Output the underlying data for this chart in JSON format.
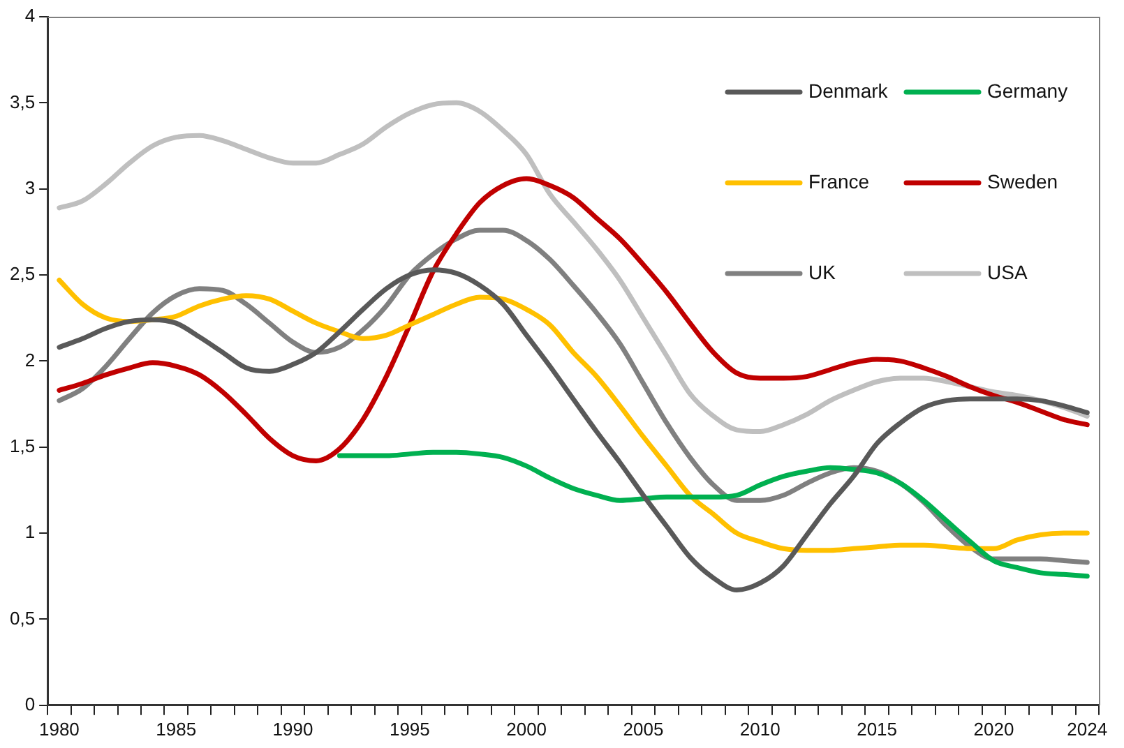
{
  "chart_data": {
    "type": "line",
    "categories": [
      "1980",
      null,
      null,
      null,
      null,
      "1985",
      null,
      null,
      null,
      null,
      "1990",
      null,
      null,
      null,
      null,
      "1995",
      null,
      null,
      null,
      null,
      "2000",
      null,
      null,
      null,
      null,
      "2005",
      null,
      null,
      null,
      null,
      "2010",
      null,
      null,
      null,
      null,
      "2015",
      null,
      null,
      null,
      null,
      "2020",
      null,
      null,
      null,
      "2024"
    ],
    "series": [
      {
        "name": "Denmark",
        "color": "#595959",
        "values": [
          2.08,
          2.13,
          2.19,
          2.23,
          2.24,
          2.22,
          2.14,
          2.05,
          1.96,
          1.94,
          1.98,
          2.05,
          2.17,
          2.3,
          2.42,
          2.5,
          2.53,
          2.51,
          2.44,
          2.33,
          2.15,
          1.97,
          1.78,
          1.59,
          1.41,
          1.22,
          1.04,
          0.86,
          0.74,
          0.67,
          0.71,
          0.81,
          0.99,
          1.17,
          1.33,
          1.52,
          1.64,
          1.73,
          1.77,
          1.78,
          1.78,
          1.78,
          1.77,
          1.74,
          1.7
        ]
      },
      {
        "name": "Germany",
        "color": "#00b050",
        "values": [
          null,
          null,
          null,
          null,
          null,
          null,
          null,
          null,
          null,
          null,
          null,
          null,
          1.45,
          1.45,
          1.45,
          1.46,
          1.47,
          1.47,
          1.46,
          1.44,
          1.39,
          1.32,
          1.26,
          1.22,
          1.19,
          1.2,
          1.21,
          1.21,
          1.21,
          1.22,
          1.28,
          1.33,
          1.36,
          1.38,
          1.37,
          1.35,
          1.29,
          1.19,
          1.07,
          0.95,
          0.84,
          0.8,
          0.77,
          0.76,
          0.75
        ]
      },
      {
        "name": "France",
        "color": "#ffc000",
        "values": [
          2.47,
          2.33,
          2.25,
          2.23,
          2.24,
          2.26,
          2.32,
          2.36,
          2.38,
          2.36,
          2.29,
          2.22,
          2.17,
          2.13,
          2.15,
          2.21,
          2.27,
          2.33,
          2.37,
          2.36,
          2.3,
          2.21,
          2.05,
          1.91,
          1.74,
          1.56,
          1.39,
          1.22,
          1.11,
          1.0,
          0.95,
          0.91,
          0.9,
          0.9,
          0.91,
          0.92,
          0.93,
          0.93,
          0.92,
          0.91,
          0.91,
          0.96,
          0.99,
          1.0,
          1.0
        ]
      },
      {
        "name": "Sweden",
        "color": "#c00000",
        "values": [
          1.83,
          1.87,
          1.92,
          1.96,
          1.99,
          1.97,
          1.92,
          1.82,
          1.69,
          1.55,
          1.45,
          1.42,
          1.49,
          1.66,
          1.91,
          2.21,
          2.52,
          2.74,
          2.92,
          3.02,
          3.06,
          3.02,
          2.95,
          2.83,
          2.71,
          2.56,
          2.4,
          2.22,
          2.05,
          1.93,
          1.9,
          1.9,
          1.91,
          1.95,
          1.99,
          2.01,
          2.0,
          1.96,
          1.91,
          1.85,
          1.8,
          1.76,
          1.71,
          1.66,
          1.63
        ]
      },
      {
        "name": "UK",
        "color": "#808080",
        "values": [
          1.77,
          1.84,
          1.97,
          2.13,
          2.28,
          2.38,
          2.42,
          2.41,
          2.33,
          2.22,
          2.11,
          2.05,
          2.08,
          2.18,
          2.32,
          2.5,
          2.62,
          2.71,
          2.76,
          2.76,
          2.7,
          2.59,
          2.44,
          2.28,
          2.1,
          1.87,
          1.64,
          1.44,
          1.28,
          1.19,
          1.19,
          1.22,
          1.29,
          1.35,
          1.38,
          1.36,
          1.29,
          1.18,
          1.04,
          0.92,
          0.85,
          0.85,
          0.85,
          0.84,
          0.83
        ]
      },
      {
        "name": "USA",
        "color": "#bfbfbf",
        "values": [
          2.89,
          2.93,
          3.03,
          3.15,
          3.25,
          3.3,
          3.31,
          3.28,
          3.23,
          3.18,
          3.15,
          3.15,
          3.2,
          3.26,
          3.36,
          3.44,
          3.49,
          3.5,
          3.45,
          3.34,
          3.2,
          2.97,
          2.81,
          2.65,
          2.47,
          2.25,
          2.03,
          1.81,
          1.68,
          1.6,
          1.59,
          1.63,
          1.69,
          1.77,
          1.83,
          1.88,
          1.9,
          1.9,
          1.88,
          1.85,
          1.82,
          1.8,
          1.77,
          1.73,
          1.68
        ]
      }
    ],
    "ylim": [
      0,
      4
    ],
    "yticks": [
      0,
      {
        "value": 0.5,
        "label": "0,5"
      },
      1,
      {
        "value": 1.5,
        "label": "1,5"
      },
      2,
      {
        "value": 2.5,
        "label": "2,5"
      },
      3,
      {
        "value": 3.5,
        "label": "3,5"
      },
      4
    ],
    "grid": false,
    "legend": "top right",
    "marker": "none",
    "line_style": "solid"
  }
}
